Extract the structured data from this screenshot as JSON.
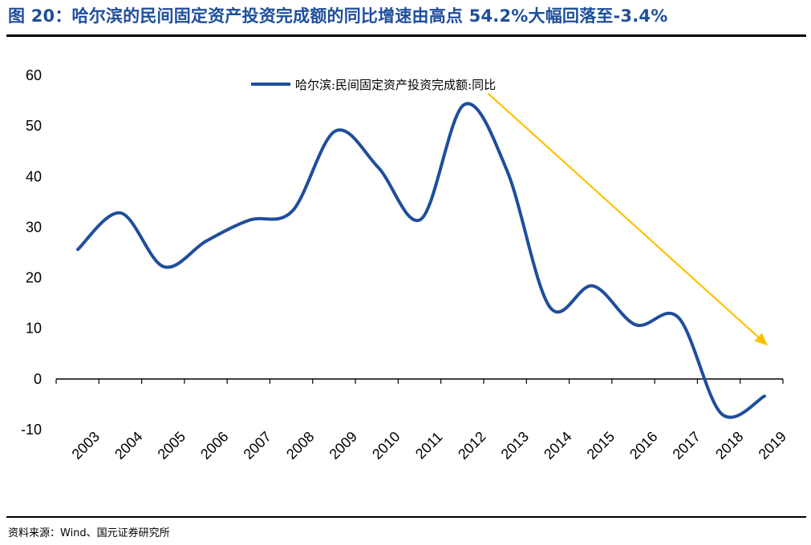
{
  "figure": {
    "title": "图 20：哈尔滨的民间固定资产投资完成额的同比增速由高点 54.2%大幅回落至-3.4%",
    "source": "资料来源：Wind、国元证券研究所"
  },
  "colors": {
    "title": "#1F4E9C",
    "series": "#1F4E9C",
    "arrow": "#FFC000",
    "axis": "#000000"
  },
  "chart_data": {
    "type": "line",
    "title": "",
    "xlabel": "",
    "ylabel": "",
    "x": [
      "2003",
      "2004",
      "2005",
      "2006",
      "2007",
      "2008",
      "2009",
      "2010",
      "2011",
      "2012",
      "2013",
      "2014",
      "2015",
      "2016",
      "2017",
      "2018",
      "2019"
    ],
    "series": [
      {
        "name": "哈尔滨:民间固定资产投资完成额:同比",
        "values": [
          25.6,
          32.8,
          22.2,
          27.3,
          31.4,
          33.2,
          49.0,
          41.8,
          31.6,
          54.2,
          41.2,
          14.2,
          18.4,
          10.7,
          12.1,
          -6.9,
          -3.4
        ]
      }
    ],
    "ylim": [
      -10,
      60
    ],
    "yticks": [
      -10,
      0,
      10,
      20,
      30,
      40,
      50,
      60
    ],
    "grid": false,
    "legend_position": "top-center",
    "annotation": {
      "type": "arrow",
      "from": {
        "x": "2012",
        "y": 54.2
      },
      "to": {
        "x": "2019",
        "y": 6.6
      }
    }
  }
}
